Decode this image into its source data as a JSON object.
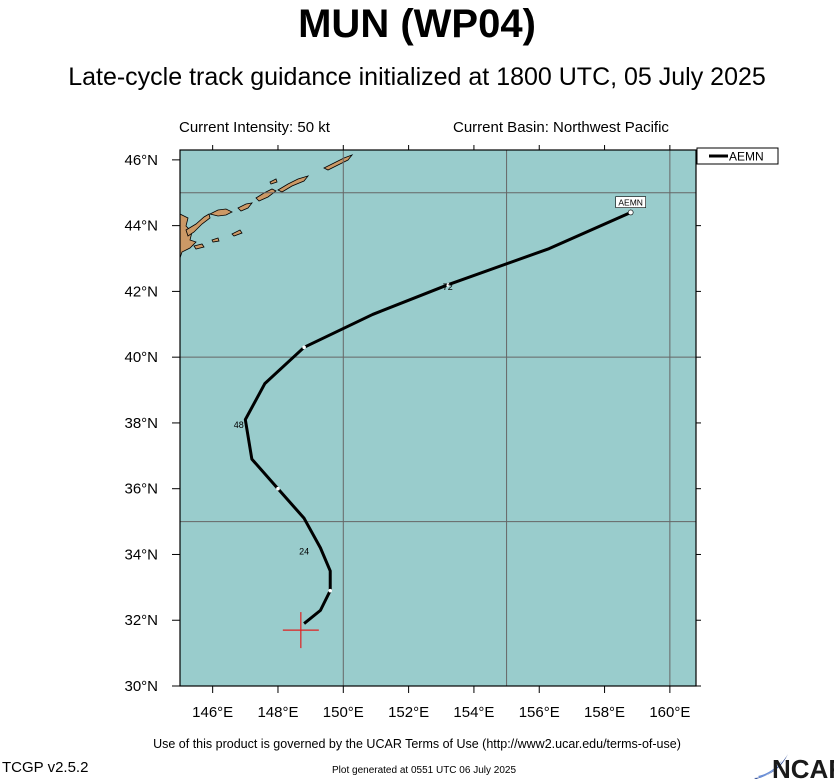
{
  "header": {
    "title": "MUN (WP04)",
    "subtitle": "Late-cycle track guidance initialized at 1800 UTC, 05 July 2025",
    "current_intensity": "Current Intensity: 50 kt",
    "current_basin": "Current Basin: Northwest Pacific"
  },
  "footer": {
    "terms": "Use of this product is governed by the UCAR Terms of Use (http://www2.ucar.edu/terms-of-use)",
    "version": "TCGP v2.5.2",
    "generated": "Plot generated at 0551 UTC   06 July 2025",
    "logo_text": "NCAR"
  },
  "map": {
    "lon_range": [
      145,
      160.8
    ],
    "lat_range": [
      30,
      46.3
    ],
    "lon_ticks": [
      146,
      148,
      150,
      152,
      154,
      156,
      158,
      160
    ],
    "lat_ticks": [
      30,
      32,
      34,
      36,
      38,
      40,
      42,
      44,
      46
    ],
    "lon_tick_labels": [
      "146°E",
      "148°E",
      "150°E",
      "152°E",
      "154°E",
      "156°E",
      "158°E",
      "160°E"
    ],
    "lat_tick_labels": [
      "30°N",
      "32°N",
      "34°N",
      "36°N",
      "38°N",
      "40°N",
      "42°N",
      "44°N",
      "46°N"
    ],
    "grid_lons": [
      150,
      155,
      160
    ],
    "grid_lats": [
      35,
      40,
      45
    ],
    "ocean_color": "#99cccc",
    "land_color": "#cc9966"
  },
  "legend": {
    "label": "AEMN"
  },
  "storm_position": {
    "lon": 148.7,
    "lat": 31.7,
    "marker_color": "#e02020"
  },
  "track": {
    "name": "AEMN",
    "points": [
      [
        148.8,
        31.9
      ],
      [
        149.3,
        32.3
      ],
      [
        149.6,
        32.9
      ],
      [
        149.6,
        33.5
      ],
      [
        149.3,
        34.2
      ],
      [
        148.8,
        35.1
      ],
      [
        148.0,
        36.0
      ],
      [
        147.2,
        36.9
      ],
      [
        147.0,
        38.1
      ],
      [
        147.6,
        39.2
      ],
      [
        148.8,
        40.3
      ],
      [
        150.9,
        41.3
      ],
      [
        153.2,
        42.2
      ],
      [
        156.3,
        43.3
      ],
      [
        158.8,
        44.4
      ]
    ],
    "hour_labels": [
      {
        "text": "24",
        "lon": 148.8,
        "lat": 34.0
      },
      {
        "text": "48",
        "lon": 146.8,
        "lat": 37.85
      },
      {
        "text": "72",
        "lon": 153.2,
        "lat": 42.05
      }
    ],
    "end_label": {
      "text": "AEMN",
      "lon": 158.8,
      "lat": 44.7
    }
  }
}
